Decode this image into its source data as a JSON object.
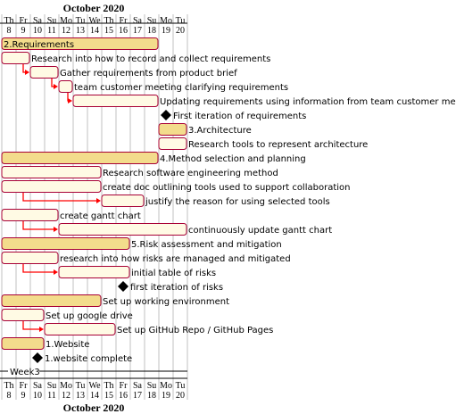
{
  "chart_data": {
    "type": "gantt",
    "month_label": "October 2020",
    "days": [
      {
        "dow": "Th",
        "num": "8"
      },
      {
        "dow": "Fr",
        "num": "9"
      },
      {
        "dow": "Sa",
        "num": "10"
      },
      {
        "dow": "Su",
        "num": "11"
      },
      {
        "dow": "Mo",
        "num": "12"
      },
      {
        "dow": "Tu",
        "num": "13"
      },
      {
        "dow": "We",
        "num": "14"
      },
      {
        "dow": "Th",
        "num": "15"
      },
      {
        "dow": "Fr",
        "num": "16"
      },
      {
        "dow": "Sa",
        "num": "17"
      },
      {
        "dow": "Su",
        "num": "18"
      },
      {
        "dow": "Mo",
        "num": "19"
      },
      {
        "dow": "Tu",
        "num": "20"
      }
    ],
    "separator_label": "Week3",
    "tasks": [
      {
        "label": "2.Requirements",
        "start": 8,
        "end": 18,
        "kind": "group",
        "label_inside": true
      },
      {
        "label": "Research into how to record and collect requirements",
        "start": 8,
        "end": 9,
        "kind": "task"
      },
      {
        "label": "Gather requirements from product brief",
        "start": 10,
        "end": 11,
        "kind": "task",
        "dep": 1
      },
      {
        "label": "team customer meeting clarifying requirements",
        "start": 12,
        "end": 12,
        "kind": "task",
        "dep": 2
      },
      {
        "label": "Updating requirements using information from team customer meeting",
        "start": 13,
        "end": 18,
        "kind": "task",
        "dep": 3
      },
      {
        "label": "First iteration of requirements",
        "start": 19,
        "end": 19,
        "kind": "milestone"
      },
      {
        "label": "3.Architecture",
        "start": 19,
        "end": 20,
        "kind": "group"
      },
      {
        "label": "Research tools to represent architecture",
        "start": 19,
        "end": 20,
        "kind": "task"
      },
      {
        "label": "4.Method selection and planning",
        "start": 8,
        "end": 18,
        "kind": "group"
      },
      {
        "label": "Research software engineering method",
        "start": 8,
        "end": 14,
        "kind": "task"
      },
      {
        "label": "create doc outlining tools used to support collaboration",
        "start": 8,
        "end": 14,
        "kind": "task"
      },
      {
        "label": "justify the reason for using selected tools",
        "start": 15,
        "end": 17,
        "kind": "task",
        "dep": 10
      },
      {
        "label": "create gantt chart",
        "start": 8,
        "end": 11,
        "kind": "task"
      },
      {
        "label": "continuously update gantt chart",
        "start": 12,
        "end": 20,
        "kind": "task",
        "dep": 12
      },
      {
        "label": "5.Risk assessment and mitigation",
        "start": 8,
        "end": 16,
        "kind": "group"
      },
      {
        "label": "research into how risks are managed and mitigated",
        "start": 8,
        "end": 11,
        "kind": "task"
      },
      {
        "label": "initial table of risks",
        "start": 12,
        "end": 16,
        "kind": "task",
        "dep": 15
      },
      {
        "label": "first iteration of risks",
        "start": 16,
        "end": 16,
        "kind": "milestone"
      },
      {
        "label": "Set up working environment",
        "start": 8,
        "end": 14,
        "kind": "group"
      },
      {
        "label": "Set up google drive",
        "start": 8,
        "end": 10,
        "kind": "task"
      },
      {
        "label": "Set up GitHub Repo / GitHub Pages",
        "start": 11,
        "end": 15,
        "kind": "task",
        "dep": 19
      },
      {
        "label": "1.Website",
        "start": 8,
        "end": 10,
        "kind": "group"
      },
      {
        "label": "1.website complete",
        "start": 10,
        "end": 10,
        "kind": "milestone"
      }
    ],
    "colors": {
      "group_fill": "#f3dc8c",
      "task_fill": "#fffae4",
      "bar_stroke": "#a80036",
      "arrow": "#ff0000",
      "milestone": "#000000",
      "grid": "#c0c0c0"
    }
  }
}
